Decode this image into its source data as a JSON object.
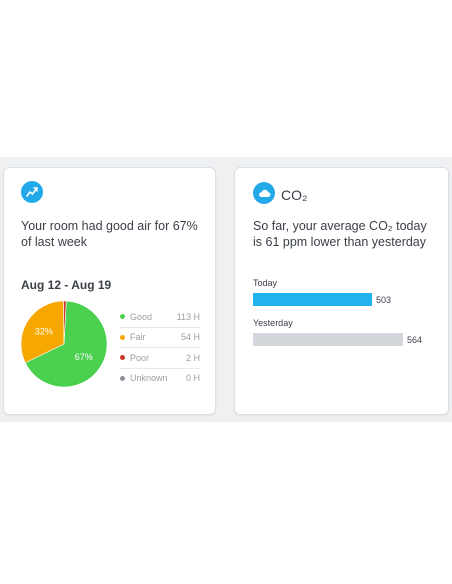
{
  "air_card": {
    "icon": "trend-up-icon",
    "headline": "Your room had good air for 67% of last week",
    "date_range": "Aug 12 - Aug 19",
    "pie": {
      "slices": [
        {
          "name": "Good",
          "value": 67,
          "label": "67%",
          "color": "#4cd04f"
        },
        {
          "name": "Fair",
          "value": 32,
          "label": "32%",
          "color": "#f6a800"
        },
        {
          "name": "Poor",
          "value": 1,
          "label": "",
          "color": "#c9362b"
        }
      ]
    },
    "legend": [
      {
        "label": "Good",
        "value": "113 H",
        "color": "#4cd04f"
      },
      {
        "label": "Fair",
        "value": "54 H",
        "color": "#f6a800"
      },
      {
        "label": "Poor",
        "value": "2 H",
        "color": "#c9362b"
      },
      {
        "label": "Unknown",
        "value": "0 H",
        "color": "#8e9399"
      }
    ]
  },
  "co2_card": {
    "icon": "cloud-icon",
    "title": "CO₂",
    "headline": "So far, your average CO₂ today is 61 ppm lower than yesterday",
    "bars": [
      {
        "label": "Today",
        "value": "503",
        "amount": 503,
        "color": "#23b3ec"
      },
      {
        "label": "Yesterday",
        "value": "564",
        "amount": 564,
        "color": "#d3d6da"
      }
    ]
  },
  "chart_data": {
    "type": "pie",
    "categories": [
      "Good",
      "Fair",
      "Poor",
      "Unknown"
    ],
    "values": [
      113,
      54,
      2,
      0
    ],
    "title": "Aug 12 - Aug 19"
  }
}
